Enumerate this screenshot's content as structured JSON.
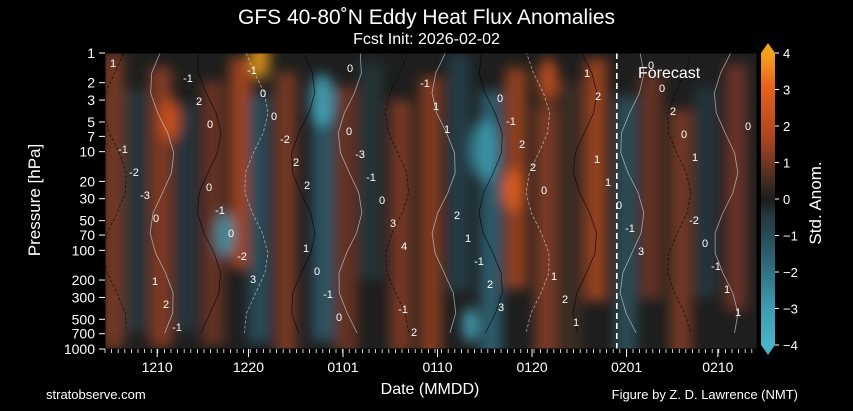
{
  "chart_data": {
    "type": "heatmap",
    "title": "GFS 40-80˚N Eddy Heat Flux Anomalies",
    "subtitle": "Fcst Init: 2026-02-02",
    "xlabel": "Date (MMDD)",
    "ylabel": "Pressure [hPa]",
    "x_ticks": [
      "1210",
      "1220",
      "0101",
      "0110",
      "0120",
      "0201",
      "0210"
    ],
    "y_ticks": [
      1,
      2,
      3,
      5,
      7,
      10,
      20,
      30,
      50,
      70,
      100,
      200,
      300,
      500,
      700,
      1000
    ],
    "y_scale": "log",
    "ylim": [
      1000,
      1
    ],
    "forecast_label": "Forecast",
    "forecast_start": "0202",
    "colorbar": {
      "label": "Std. Anom.",
      "ticks": [
        4,
        3,
        2,
        1,
        0,
        -1,
        -2,
        -3,
        -4
      ],
      "range": [
        -4,
        4
      ],
      "colors": {
        "positive_high": "#f5a21b",
        "positive_mid": "#c44a1d",
        "positive_low": "#6b3325",
        "neutral": "#1c1c1c",
        "negative_low": "#21363d",
        "negative_mid": "#2e6a7a",
        "negative_high": "#4ab3c9"
      }
    },
    "contour_labels": [
      "1",
      "0",
      "2",
      "4",
      "3",
      "2",
      "1",
      "0",
      "3",
      "0",
      "1",
      "0",
      "3",
      "1",
      "2",
      "2",
      "3",
      "2",
      "1",
      "0",
      "-3",
      "-2",
      "0",
      "1",
      "2",
      "-1",
      "1",
      "-1",
      "-2",
      "0",
      "-1",
      "1",
      "2",
      "-2",
      "0",
      "-1",
      "-1",
      "2",
      "0",
      "-1",
      "-1",
      "0",
      "-1",
      "1",
      "2",
      "0",
      "-1",
      "-1",
      "0",
      "2",
      "-1",
      "1",
      "0",
      "2",
      "0",
      "-3",
      "2",
      "1",
      "0",
      "0",
      "0",
      "1",
      "-1",
      "0",
      "1",
      "-2",
      "1",
      "-1",
      "0"
    ]
  },
  "credits": {
    "left": "stratobserve.com",
    "right": "Figure by Z. D. Lawrence (NMT)"
  }
}
